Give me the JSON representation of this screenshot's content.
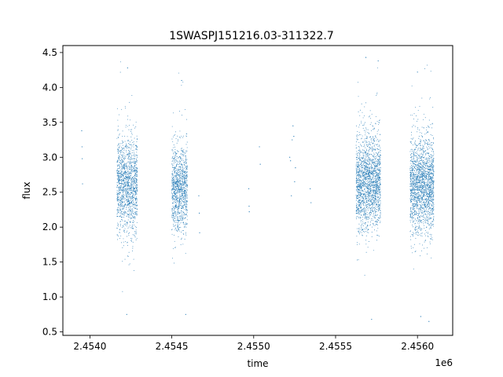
{
  "chart_data": {
    "type": "scatter",
    "title": "1SWASPJ151216.03-311322.7",
    "xlabel": "time",
    "ylabel": "flux",
    "x_offset_label": "1e6",
    "xlim": [
      2453835,
      2456215
    ],
    "ylim": [
      0.45,
      4.6
    ],
    "x_ticks": [
      2.454,
      2.4545,
      2.455,
      2.4555,
      2.456
    ],
    "x_tick_labels": [
      "2.4540",
      "2.4545",
      "2.4550",
      "2.4555",
      "2.4560"
    ],
    "y_ticks": [
      0.5,
      1.0,
      1.5,
      2.0,
      2.5,
      3.0,
      3.5,
      4.0,
      4.5
    ],
    "y_tick_labels": [
      "0.5",
      "1.0",
      "1.5",
      "2.0",
      "2.5",
      "3.0",
      "3.5",
      "4.0",
      "4.5"
    ],
    "grid": false,
    "marker_color": "#1f77b4",
    "clusters": [
      {
        "x_start": 2454165,
        "x_end": 2454290,
        "y_center": 2.6,
        "y_spread": 0.45,
        "count": 1400
      },
      {
        "x_start": 2454500,
        "x_end": 2454595,
        "y_center": 2.55,
        "y_spread": 0.4,
        "count": 1100
      },
      {
        "x_start": 2455625,
        "x_end": 2455775,
        "y_center": 2.65,
        "y_spread": 0.45,
        "count": 1900
      },
      {
        "x_start": 2455955,
        "x_end": 2456100,
        "y_center": 2.6,
        "y_spread": 0.45,
        "count": 1900
      }
    ],
    "sparse_points": [
      {
        "x": 2453950,
        "y": 3.38
      },
      {
        "x": 2453952,
        "y": 3.15
      },
      {
        "x": 2453953,
        "y": 2.98
      },
      {
        "x": 2453955,
        "y": 2.62
      },
      {
        "x": 2454665,
        "y": 2.45
      },
      {
        "x": 2454668,
        "y": 2.2
      },
      {
        "x": 2454670,
        "y": 1.92
      },
      {
        "x": 2454970,
        "y": 2.55
      },
      {
        "x": 2454972,
        "y": 2.3
      },
      {
        "x": 2454973,
        "y": 2.22
      },
      {
        "x": 2455035,
        "y": 3.15
      },
      {
        "x": 2455040,
        "y": 2.9
      },
      {
        "x": 2455220,
        "y": 3.0
      },
      {
        "x": 2455225,
        "y": 2.95
      },
      {
        "x": 2455230,
        "y": 2.45
      },
      {
        "x": 2455235,
        "y": 3.25
      },
      {
        "x": 2455240,
        "y": 3.45
      },
      {
        "x": 2455245,
        "y": 3.3
      },
      {
        "x": 2455250,
        "y": 2.65
      },
      {
        "x": 2455255,
        "y": 2.85
      },
      {
        "x": 2455345,
        "y": 2.55
      },
      {
        "x": 2455350,
        "y": 2.35
      },
      {
        "x": 2454225,
        "y": 0.75
      },
      {
        "x": 2454230,
        "y": 4.28
      },
      {
        "x": 2454560,
        "y": 4.1
      },
      {
        "x": 2454585,
        "y": 0.75
      },
      {
        "x": 2455685,
        "y": 4.43
      },
      {
        "x": 2455720,
        "y": 0.68
      },
      {
        "x": 2455760,
        "y": 4.38
      },
      {
        "x": 2456000,
        "y": 4.22
      },
      {
        "x": 2456070,
        "y": 0.65
      },
      {
        "x": 2456020,
        "y": 0.72
      }
    ]
  }
}
